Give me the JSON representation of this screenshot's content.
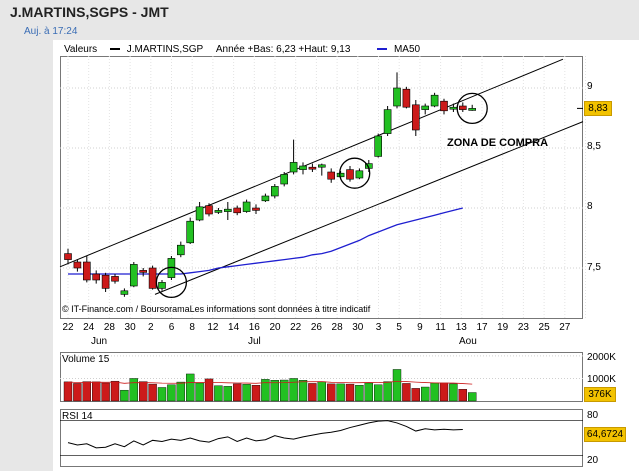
{
  "header": {
    "title": "J.MARTINS,SGPS - JMT",
    "updated": "Auj. à 17:24"
  },
  "legend": {
    "valeurs": "Valeurs",
    "symbol": "J.MARTINS,SGP",
    "range": "Année +Bas: 6,23 +Haut: 9,13",
    "ma": "MA50",
    "colors": {
      "price": "#000000",
      "ma": "#1f1fd0",
      "up": "#22c022",
      "down": "#cc1a1a",
      "tag": "#f2c200"
    }
  },
  "annotations": {
    "zone": "ZONA DE COMPRA",
    "copyright": "© IT-Finance.com / BoursoramaLes informations sont données à titre indicatif"
  },
  "price_pane": {
    "y_labels": [
      "9",
      "8,5",
      "8",
      "7,5"
    ],
    "last": "8,83"
  },
  "volume_pane": {
    "title": "Volume 15",
    "y_labels": [
      "2000K",
      "1000K"
    ],
    "last": "376K"
  },
  "rsi_pane": {
    "title": "RSI 14",
    "y_labels": [
      "80",
      "20"
    ],
    "last": "64,6724"
  },
  "x_axis": {
    "days": [
      "22",
      "24",
      "28",
      "30",
      "2",
      "6",
      "8",
      "12",
      "14",
      "16",
      "20",
      "22",
      "26",
      "28",
      "30",
      "3",
      "5",
      "9",
      "11",
      "13",
      "17",
      "19",
      "23",
      "25",
      "27"
    ],
    "months": [
      "Jun",
      "Jul",
      "Aou"
    ]
  },
  "chart_data": [
    {
      "type": "candlestick",
      "title": "J.MARTINS,SGPS - JMT",
      "ylim": [
        7.2,
        9.3
      ],
      "candles": [
        {
          "o": 7.62,
          "h": 7.66,
          "l": 7.53,
          "c": 7.57
        },
        {
          "o": 7.55,
          "h": 7.57,
          "l": 7.47,
          "c": 7.5
        },
        {
          "o": 7.55,
          "h": 7.6,
          "l": 7.38,
          "c": 7.4
        },
        {
          "o": 7.45,
          "h": 7.48,
          "l": 7.37,
          "c": 7.4
        },
        {
          "o": 7.44,
          "h": 7.46,
          "l": 7.3,
          "c": 7.33
        },
        {
          "o": 7.43,
          "h": 7.45,
          "l": 7.37,
          "c": 7.39
        },
        {
          "o": 7.28,
          "h": 7.33,
          "l": 7.26,
          "c": 7.31
        },
        {
          "o": 7.35,
          "h": 7.55,
          "l": 7.34,
          "c": 7.53
        },
        {
          "o": 7.48,
          "h": 7.5,
          "l": 7.43,
          "c": 7.47
        },
        {
          "o": 7.5,
          "h": 7.52,
          "l": 7.32,
          "c": 7.33
        },
        {
          "o": 7.33,
          "h": 7.4,
          "l": 7.31,
          "c": 7.38
        },
        {
          "o": 7.42,
          "h": 7.6,
          "l": 7.4,
          "c": 7.58
        },
        {
          "o": 7.61,
          "h": 7.72,
          "l": 7.59,
          "c": 7.69
        },
        {
          "o": 7.71,
          "h": 7.92,
          "l": 7.7,
          "c": 7.89
        },
        {
          "o": 7.9,
          "h": 8.05,
          "l": 7.89,
          "c": 8.01
        },
        {
          "o": 8.02,
          "h": 8.04,
          "l": 7.93,
          "c": 7.95
        },
        {
          "o": 7.97,
          "h": 8.0,
          "l": 7.95,
          "c": 7.98
        },
        {
          "o": 7.97,
          "h": 8.05,
          "l": 7.9,
          "c": 7.99
        },
        {
          "o": 8.0,
          "h": 8.02,
          "l": 7.94,
          "c": 7.96
        },
        {
          "o": 7.97,
          "h": 8.07,
          "l": 7.96,
          "c": 8.05
        },
        {
          "o": 8.0,
          "h": 8.03,
          "l": 7.95,
          "c": 7.98
        },
        {
          "o": 8.06,
          "h": 8.12,
          "l": 8.05,
          "c": 8.1
        },
        {
          "o": 8.1,
          "h": 8.2,
          "l": 8.08,
          "c": 8.18
        },
        {
          "o": 8.2,
          "h": 8.3,
          "l": 8.18,
          "c": 8.28
        },
        {
          "o": 8.3,
          "h": 8.57,
          "l": 8.28,
          "c": 8.38
        },
        {
          "o": 8.32,
          "h": 8.38,
          "l": 8.28,
          "c": 8.35
        },
        {
          "o": 8.34,
          "h": 8.37,
          "l": 8.3,
          "c": 8.33
        },
        {
          "o": 8.34,
          "h": 8.37,
          "l": 8.27,
          "c": 8.36
        },
        {
          "o": 8.3,
          "h": 8.33,
          "l": 8.21,
          "c": 8.24
        },
        {
          "o": 8.26,
          "h": 8.31,
          "l": 8.24,
          "c": 8.29
        },
        {
          "o": 8.32,
          "h": 8.35,
          "l": 8.22,
          "c": 8.24
        },
        {
          "o": 8.25,
          "h": 8.33,
          "l": 8.24,
          "c": 8.31
        },
        {
          "o": 8.33,
          "h": 8.4,
          "l": 8.3,
          "c": 8.37
        },
        {
          "o": 8.43,
          "h": 8.62,
          "l": 8.42,
          "c": 8.6
        },
        {
          "o": 8.62,
          "h": 8.85,
          "l": 8.6,
          "c": 8.82
        },
        {
          "o": 8.85,
          "h": 9.13,
          "l": 8.83,
          "c": 9.0
        },
        {
          "o": 8.99,
          "h": 9.01,
          "l": 8.83,
          "c": 8.84
        },
        {
          "o": 8.86,
          "h": 8.9,
          "l": 8.6,
          "c": 8.65
        },
        {
          "o": 8.82,
          "h": 8.87,
          "l": 8.78,
          "c": 8.85
        },
        {
          "o": 8.85,
          "h": 8.96,
          "l": 8.84,
          "c": 8.94
        },
        {
          "o": 8.89,
          "h": 8.91,
          "l": 8.78,
          "c": 8.81
        },
        {
          "o": 8.83,
          "h": 8.87,
          "l": 8.8,
          "c": 8.84
        },
        {
          "o": 8.85,
          "h": 8.88,
          "l": 8.8,
          "c": 8.82
        },
        {
          "o": 8.83,
          "h": 8.86,
          "l": 8.81,
          "c": 8.83
        }
      ],
      "ma50": [
        7.45,
        7.45,
        7.45,
        7.45,
        7.45,
        7.45,
        7.45,
        7.45,
        7.45,
        7.45,
        7.45,
        7.45,
        7.45,
        7.46,
        7.47,
        7.48,
        7.5,
        7.51,
        7.52,
        7.53,
        7.54,
        7.55,
        7.56,
        7.57,
        7.58,
        7.59,
        7.61,
        7.62,
        7.64,
        7.67,
        7.7,
        7.73,
        7.77,
        7.8,
        7.83,
        7.86,
        7.88,
        7.9,
        7.92,
        7.94,
        7.96,
        7.98,
        8.0
      ]
    },
    {
      "type": "bar",
      "title": "Volume 15",
      "ylim": [
        0,
        2200
      ],
      "values": [
        850,
        780,
        860,
        850,
        800,
        880,
        480,
        1000,
        860,
        750,
        600,
        720,
        840,
        1200,
        800,
        980,
        680,
        650,
        760,
        740,
        700,
        960,
        920,
        930,
        1000,
        920,
        780,
        860,
        760,
        760,
        750,
        700,
        800,
        720,
        860,
        1400,
        780,
        560,
        620,
        800,
        800,
        760,
        520,
        376
      ]
    },
    {
      "type": "line",
      "title": "RSI 14",
      "ylim": [
        0,
        100
      ],
      "values": [
        42,
        38,
        40,
        33,
        34,
        40,
        35,
        45,
        38,
        46,
        44,
        48,
        46,
        50,
        45,
        43,
        49,
        52,
        44,
        50,
        45,
        47,
        54,
        50,
        48,
        52,
        55,
        58,
        60,
        63,
        68,
        72,
        76,
        79,
        80,
        76,
        70,
        62,
        66,
        64,
        65,
        64,
        64.67
      ]
    }
  ]
}
